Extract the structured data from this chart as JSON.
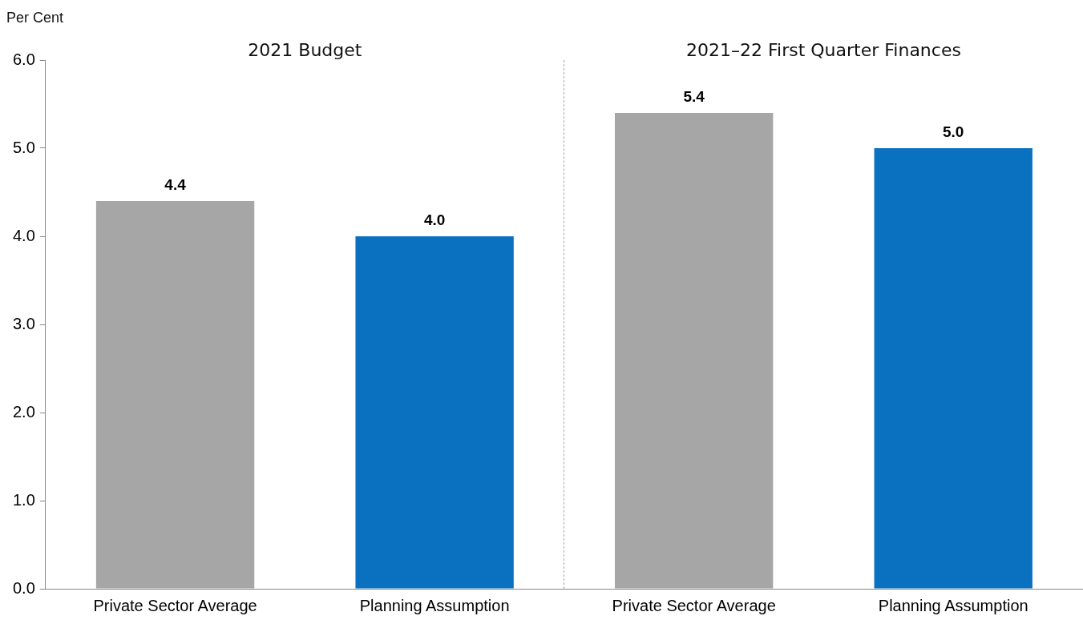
{
  "chart_data": {
    "type": "bar",
    "ylabel": "Per Cent",
    "categories": [
      "Private Sector Average",
      "Planning Assumption",
      "Private Sector Average",
      "Planning Assumption"
    ],
    "values": [
      4.4,
      4.0,
      5.4,
      5.0
    ],
    "colors": [
      "#a6a6a6",
      "#0a70c0",
      "#a6a6a6",
      "#0a70c0"
    ],
    "value_labels": [
      "4.4",
      "4.0",
      "5.4",
      "5.0"
    ],
    "ylim": [
      0,
      6
    ],
    "yticks": [
      {
        "value": 0,
        "label": "0.0"
      },
      {
        "value": 1,
        "label": "1.0"
      },
      {
        "value": 2,
        "label": "2.0"
      },
      {
        "value": 3,
        "label": "3.0"
      },
      {
        "value": 4,
        "label": "4.0"
      },
      {
        "value": 5,
        "label": "5.0"
      },
      {
        "value": 6,
        "label": "6.0"
      }
    ],
    "annotations": [
      "2021 Budget",
      "2021–22 First Quarter Finances"
    ],
    "grid": false,
    "legend": false
  }
}
